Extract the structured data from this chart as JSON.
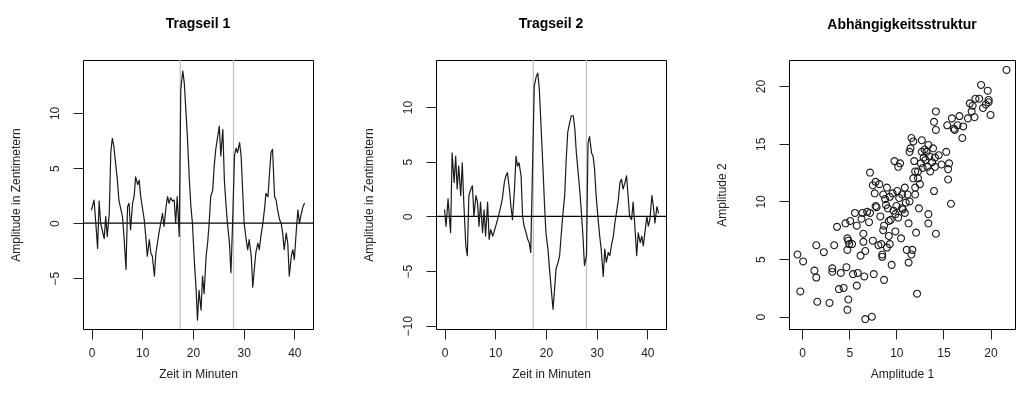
{
  "chart_data": [
    {
      "type": "line",
      "title": "Tragseil 1",
      "xlabel": "Zeit in Minuten",
      "ylabel": "Amplitude in Zentimetern",
      "color": "#1a1a1a",
      "x": [
        0,
        0.5,
        0.8,
        1.2,
        1.5,
        1.8,
        2.1,
        2.5,
        2.8,
        3.1,
        3.5,
        3.8,
        4.1,
        4.4,
        4.8,
        5.1,
        5.4,
        6.1,
        6.4,
        6.8,
        7.1,
        7.4,
        7.7,
        8.1,
        8.4,
        8.7,
        9.1,
        9.4,
        9.7,
        10.4,
        10.7,
        11.0,
        11.4,
        11.7,
        12.0,
        12.4,
        12.7,
        13.0,
        13.3,
        14.0,
        14.3,
        14.7,
        15.0,
        15.3,
        15.6,
        16.0,
        16.3,
        16.6,
        16.9,
        17.3,
        17.6,
        18.0,
        18.3,
        18.6,
        18.9,
        19.3,
        19.6,
        19.9,
        20.3,
        20.6,
        20.9,
        21.2,
        21.6,
        21.9,
        22.2,
        22.6,
        22.9,
        23.2,
        23.5,
        23.9,
        24.2,
        24.5,
        24.9,
        25.2,
        25.5,
        25.9,
        26.2,
        26.5,
        26.8,
        27.2,
        27.5,
        27.8,
        28.2,
        28.5,
        28.8,
        29.2,
        29.5,
        29.8,
        30.1,
        30.5,
        30.8,
        31.1,
        31.5,
        31.8,
        32.1,
        32.4,
        32.8,
        33.1,
        33.4,
        33.8,
        34.1,
        34.4,
        34.8,
        35.1,
        35.4,
        35.7,
        36.1,
        36.4,
        36.7,
        37.1,
        37.4,
        37.7,
        38.0,
        38.4,
        38.7,
        39.0,
        39.4,
        39.7,
        40.0,
        40.4,
        40.7,
        41.0,
        41.4,
        41.7,
        42.0
      ],
      "values": [
        1.2,
        2.1,
        0.3,
        -2.3,
        2.0,
        0,
        -0.6,
        -1.4,
        0.6,
        -1.2,
        0.9,
        6.4,
        7.7,
        7.0,
        5.2,
        3.9,
        2.1,
        0.6,
        -1.2,
        -4.2,
        1.5,
        1.8,
        -0.6,
        1.8,
        2.4,
        4.2,
        3.5,
        3.9,
        2.4,
        0.3,
        -1.2,
        -3.0,
        -1.5,
        -2.7,
        -3.0,
        -4.8,
        -2.7,
        -1.8,
        -0.9,
        0.9,
        -0.3,
        1.5,
        2.4,
        1.8,
        2.3,
        2.0,
        2.1,
        0,
        2.4,
        -1.2,
        12.1,
        13.8,
        12.7,
        10.3,
        7.9,
        3.9,
        1.5,
        0,
        -3.6,
        -5.8,
        -8.8,
        -6.1,
        -7.9,
        -4.8,
        -6.4,
        -3.0,
        -1.8,
        0,
        2.4,
        3.0,
        5.2,
        6.7,
        7.9,
        8.8,
        6.1,
        8.5,
        3.9,
        1.8,
        0,
        -1.8,
        -4.5,
        -0.3,
        6.1,
        6.8,
        6.4,
        7.3,
        6.1,
        3.0,
        0,
        -1.5,
        -2.4,
        -1.5,
        -3.0,
        -5.8,
        -4.2,
        -2.7,
        -1.8,
        -2.4,
        -1.2,
        0,
        1.2,
        2.7,
        2.4,
        4.5,
        6.4,
        6.7,
        2.4,
        2.1,
        1.2,
        0.3,
        0,
        -0.9,
        -2.4,
        -0.9,
        -1.8,
        -4.8,
        -3.0,
        -2.4,
        -3.3,
        -0.6,
        1.2,
        0,
        0.9,
        1.5,
        1.8
      ],
      "xlim": [
        -1.68,
        43.68
      ],
      "ylim": [
        -9.6,
        14.8
      ],
      "xticks": [
        0,
        10,
        20,
        30,
        40
      ],
      "yticks": [
        -5,
        0,
        5,
        10
      ],
      "ref_lines": [
        {
          "axis": "x",
          "value": 17.5,
          "color": "#bebebe"
        },
        {
          "axis": "x",
          "value": 28,
          "color": "#bebebe"
        },
        {
          "axis": "y",
          "value": 0,
          "color": "#000000"
        }
      ]
    },
    {
      "type": "line",
      "title": "Tragseil 2",
      "xlabel": "Zeit in Minuten",
      "ylabel": "Amplitude in Zentimetern",
      "color": "#1a1a1a",
      "x": [
        0,
        0.3,
        0.7,
        1.0,
        1.2,
        1.5,
        1.9,
        2.2,
        2.5,
        2.8,
        3.2,
        3.5,
        3.8,
        4.2,
        4.5,
        4.8,
        5.2,
        5.5,
        5.8,
        6.2,
        6.5,
        6.8,
        7.1,
        7.5,
        7.8,
        8.1,
        8.5,
        8.8,
        9.1,
        9.5,
        10.1,
        10.8,
        11.4,
        11.8,
        12.1,
        12.4,
        12.8,
        13.1,
        13.4,
        13.8,
        14.1,
        14.4,
        14.7,
        15.1,
        15.4,
        15.7,
        16.1,
        16.4,
        16.7,
        17.0,
        17.7,
        18.1,
        18.4,
        18.7,
        19.0,
        19.4,
        19.7,
        20.0,
        20.4,
        20.7,
        21.0,
        21.4,
        21.7,
        22.0,
        22.4,
        22.7,
        23.0,
        23.3,
        23.7,
        24.0,
        24.3,
        24.7,
        25.0,
        25.4,
        25.7,
        26.0,
        26.3,
        26.7,
        27.0,
        27.3,
        27.6,
        28.0,
        28.3,
        28.6,
        29.0,
        29.3,
        29.6,
        29.9,
        30.3,
        30.6,
        30.9,
        31.3,
        31.6,
        31.9,
        32.3,
        32.6,
        32.9,
        33.3,
        33.6,
        33.9,
        34.3,
        34.6,
        34.9,
        35.2,
        35.6,
        35.9,
        36.2,
        36.5,
        36.9,
        37.2,
        37.5,
        37.9,
        38.2,
        38.6,
        38.9,
        39.2,
        39.6,
        39.9,
        40.2,
        40.5,
        40.9,
        41.2,
        41.5,
        41.9,
        42.2
      ],
      "values": [
        0.6,
        -0.9,
        1.6,
        -0.3,
        -1.5,
        5.8,
        3.1,
        5.5,
        2.5,
        4.6,
        1.9,
        4.9,
        1.3,
        -2.7,
        -3.6,
        1.9,
        2.5,
        2.8,
        0,
        1.9,
        1.3,
        -0.9,
        1.3,
        -1.5,
        0.6,
        -1.8,
        1.3,
        -2.1,
        -1.2,
        -1.8,
        -0.9,
        0.3,
        1.6,
        3.1,
        3.7,
        4.0,
        2.5,
        0.9,
        -0.3,
        2.5,
        5.5,
        4.6,
        4.9,
        3.7,
        0,
        -0.9,
        -1.5,
        -2.1,
        -2.4,
        -3.3,
        11.9,
        12.8,
        13.1,
        11.6,
        8.6,
        4.6,
        1.3,
        -1.5,
        -3.0,
        -4.8,
        -6.4,
        -8.5,
        -6.7,
        -4.8,
        -4.2,
        -3.6,
        -1.8,
        0,
        1.9,
        5.2,
        7.7,
        8.6,
        9.2,
        9.2,
        8.0,
        5.8,
        4.3,
        2.2,
        0.3,
        -1.8,
        -4.5,
        -3.6,
        6.7,
        7.3,
        5.8,
        5.5,
        4.3,
        1.9,
        -0.3,
        -1.8,
        -3.0,
        -5.5,
        -3.0,
        -4.2,
        -3.3,
        -3.6,
        -2.7,
        -1.8,
        -0.6,
        0.3,
        1.6,
        3.1,
        3.4,
        2.5,
        3.1,
        3.7,
        1.9,
        0,
        -0.3,
        1.3,
        -0.6,
        -3.6,
        -1.5,
        -2.4,
        -1.8,
        -2.7,
        -1.2,
        0,
        -0.9,
        -0.3,
        1.9,
        0.9,
        -0.6,
        0.9,
        0.3
      ],
      "xlim": [
        -1.68,
        43.68
      ],
      "ylim": [
        -10.3,
        14.3
      ],
      "xticks": [
        0,
        10,
        20,
        30,
        40
      ],
      "yticks": [
        -10,
        -5,
        0,
        5,
        10
      ],
      "ref_lines": [
        {
          "axis": "x",
          "value": 17.5,
          "color": "#bebebe"
        },
        {
          "axis": "x",
          "value": 28,
          "color": "#bebebe"
        },
        {
          "axis": "y",
          "value": 0,
          "color": "#000000"
        }
      ]
    },
    {
      "type": "scatter",
      "title": "Abhängigkeitsstruktur",
      "xlabel": "Amplitude 1",
      "ylabel": "Amplitude 2",
      "color": "#1a1a1a",
      "marker": "circle",
      "x": [
        -0.5,
        0.1,
        -0.2,
        1.3,
        1.5,
        1.5,
        1.6,
        2.3,
        2.9,
        3.4,
        3.2,
        3.2,
        4.1,
        3.7,
        3.9,
        4.4,
        4.6,
        4.7,
        4.8,
        4.8,
        4.8,
        4.9,
        4.9,
        5.0,
        5.1,
        5.3,
        5.4,
        5.6,
        5.8,
        5.8,
        5.9,
        6.2,
        6.3,
        6.4,
        6.5,
        6.5,
        6.6,
        6.7,
        6.7,
        6.9,
        7.1,
        7.2,
        7.2,
        7.4,
        7.5,
        7.5,
        7.6,
        7.7,
        7.8,
        7.8,
        7.9,
        8.1,
        8.2,
        8.3,
        8.4,
        8.5,
        8.5,
        8.6,
        8.6,
        8.7,
        8.7,
        8.8,
        8.9,
        9.0,
        9.0,
        9.1,
        9.2,
        9.2,
        9.3,
        9.3,
        9.4,
        9.5,
        9.6,
        9.7,
        9.8,
        9.9,
        9.9,
        10.0,
        10.1,
        10.2,
        10.2,
        10.3,
        10.4,
        10.5,
        10.6,
        10.6,
        10.7,
        10.9,
        10.9,
        11.0,
        11.1,
        11.2,
        11.3,
        11.3,
        11.4,
        11.4,
        11.5,
        11.6,
        11.6,
        11.7,
        11.8,
        11.8,
        11.9,
        12.0,
        12.0,
        12.0,
        12.1,
        12.2,
        12.3,
        12.3,
        12.4,
        12.5,
        12.6,
        12.7,
        12.7,
        12.8,
        12.9,
        13.0,
        13.1,
        13.2,
        13.3,
        13.4,
        13.4,
        13.4,
        13.5,
        13.6,
        13.8,
        13.9,
        14.0,
        14.0,
        14.1,
        14.1,
        14.2,
        14.2,
        14.2,
        14.5,
        14.8,
        15.3,
        15.4,
        15.5,
        15.5,
        15.6,
        15.8,
        15.9,
        16.1,
        16.2,
        16.5,
        16.7,
        17.0,
        17.1,
        17.6,
        17.8,
        18.0,
        18.1,
        18.3,
        18.4,
        18.8,
        19.0,
        19.2,
        19.5,
        19.7,
        19.8,
        19.8,
        20.0,
        21.7
      ],
      "values": [
        5.4,
        4.8,
        2.2,
        4.0,
        3.4,
        6.2,
        1.3,
        5.6,
        1.2,
        6.2,
        4.2,
        3.9,
        3.8,
        7.8,
        2.4,
        2.5,
        8.1,
        4.3,
        6.8,
        5.8,
        0.6,
        1.5,
        6.6,
        6.3,
        8.3,
        6.3,
        3.7,
        9.0,
        2.7,
        7.9,
        3.8,
        5.3,
        8.5,
        9.0,
        7.2,
        6.5,
        3.5,
        -0.2,
        5.7,
        9.1,
        8.2,
        9.0,
        12.5,
        0.0,
        11.4,
        6.6,
        3.7,
        10.7,
        11.7,
        9.6,
        9.5,
        6.2,
        11.5,
        8.7,
        6.3,
        5.4,
        5.2,
        10.6,
        7.5,
        7.9,
        3.2,
        10.2,
        9.7,
        11.2,
        6.0,
        9.4,
        8.3,
        7.0,
        6.3,
        10.4,
        8.4,
        4.5,
        10.7,
        9.2,
        13.5,
        7.4,
        8.9,
        9.6,
        10.9,
        13.0,
        8.6,
        10.3,
        13.3,
        6.8,
        10.6,
        9.4,
        9.3,
        9.0,
        11.2,
        9.9,
        5.8,
        10.6,
        4.7,
        8.1,
        14.3,
        10.0,
        14.6,
        15.5,
        5.4,
        5.8,
        12.0,
        15.2,
        13.5,
        10.6,
        12.6,
        11.2,
        7.3,
        2.0,
        12.6,
        12.0,
        9.4,
        11.5,
        13.3,
        15.3,
        14.3,
        12.9,
        13.8,
        14.5,
        13.6,
        14.3,
        13.0,
        14.9,
        8.9,
        8.1,
        13.9,
        12.6,
        13.4,
        14.6,
        10.9,
        16.9,
        13.8,
        13.0,
        16.2,
        17.8,
        7.2,
        14.0,
        13.2,
        14.3,
        16.6,
        11.9,
        12.8,
        13.3,
        9.8,
        17.2,
        16.3,
        16.2,
        16.6,
        17.4,
        15.5,
        16.5,
        17.2,
        18.5,
        17.8,
        18.3,
        17.3,
        18.9,
        18.9,
        20.1,
        18.1,
        18.4,
        19.6,
        18.6,
        18.8,
        17.5,
        21.4
      ],
      "xlim": [
        -1.4,
        22.6
      ],
      "ylim": [
        -1.06,
        22.26
      ],
      "xticks": [
        0,
        5,
        10,
        15,
        20
      ],
      "yticks": [
        0,
        5,
        10,
        15,
        20
      ]
    }
  ]
}
